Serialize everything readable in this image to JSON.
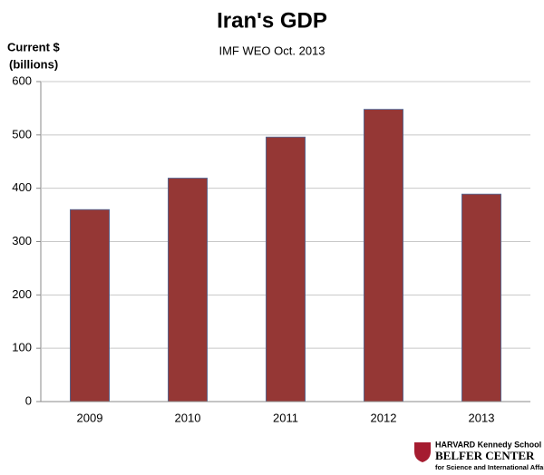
{
  "chart_data": {
    "type": "bar",
    "title": "Iran's GDP",
    "subtitle": "IMF WEO Oct. 2013",
    "y_label": [
      "Current $",
      "(billions)"
    ],
    "categories": [
      "2009",
      "2010",
      "2011",
      "2012",
      "2013"
    ],
    "values": [
      360,
      419,
      496,
      548,
      389
    ],
    "color": "#953735",
    "ylim": [
      0,
      600
    ],
    "yticks": [
      0,
      100,
      200,
      300,
      400,
      500,
      600
    ],
    "grid": true
  },
  "logo": {
    "school": "HARVARD Kennedy School",
    "center": "BELFER CENTER",
    "tagline": "for Science and International Affairs"
  }
}
